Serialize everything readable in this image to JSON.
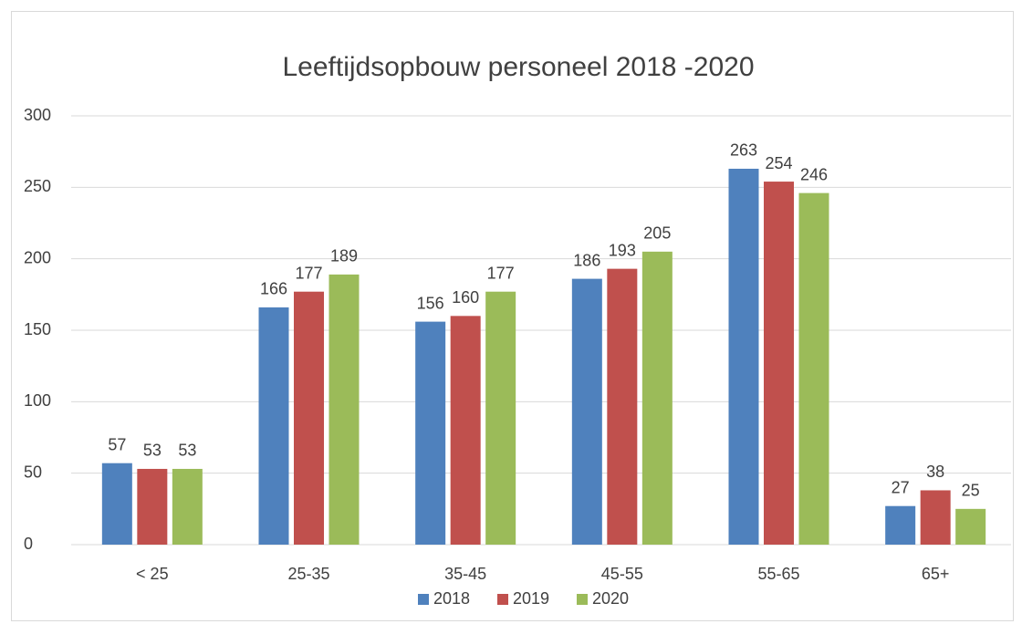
{
  "chart_data": {
    "type": "bar",
    "title": "Leeftijdsopbouw personeel 2018 -2020",
    "categories": [
      "< 25",
      "25-35",
      "35-45",
      "45-55",
      "55-65",
      "65+"
    ],
    "series": [
      {
        "name": "2018",
        "color": "#4f81bd",
        "values": [
          57,
          166,
          156,
          186,
          263,
          27
        ]
      },
      {
        "name": "2019",
        "color": "#c0504d",
        "values": [
          53,
          177,
          160,
          193,
          254,
          38
        ]
      },
      {
        "name": "2020",
        "color": "#9bbb59",
        "values": [
          53,
          189,
          177,
          205,
          246,
          25
        ]
      }
    ],
    "ylim": [
      0,
      300
    ],
    "yticks": [
      0,
      50,
      100,
      150,
      200,
      250,
      300
    ],
    "grid": true,
    "legend": "bottom"
  }
}
